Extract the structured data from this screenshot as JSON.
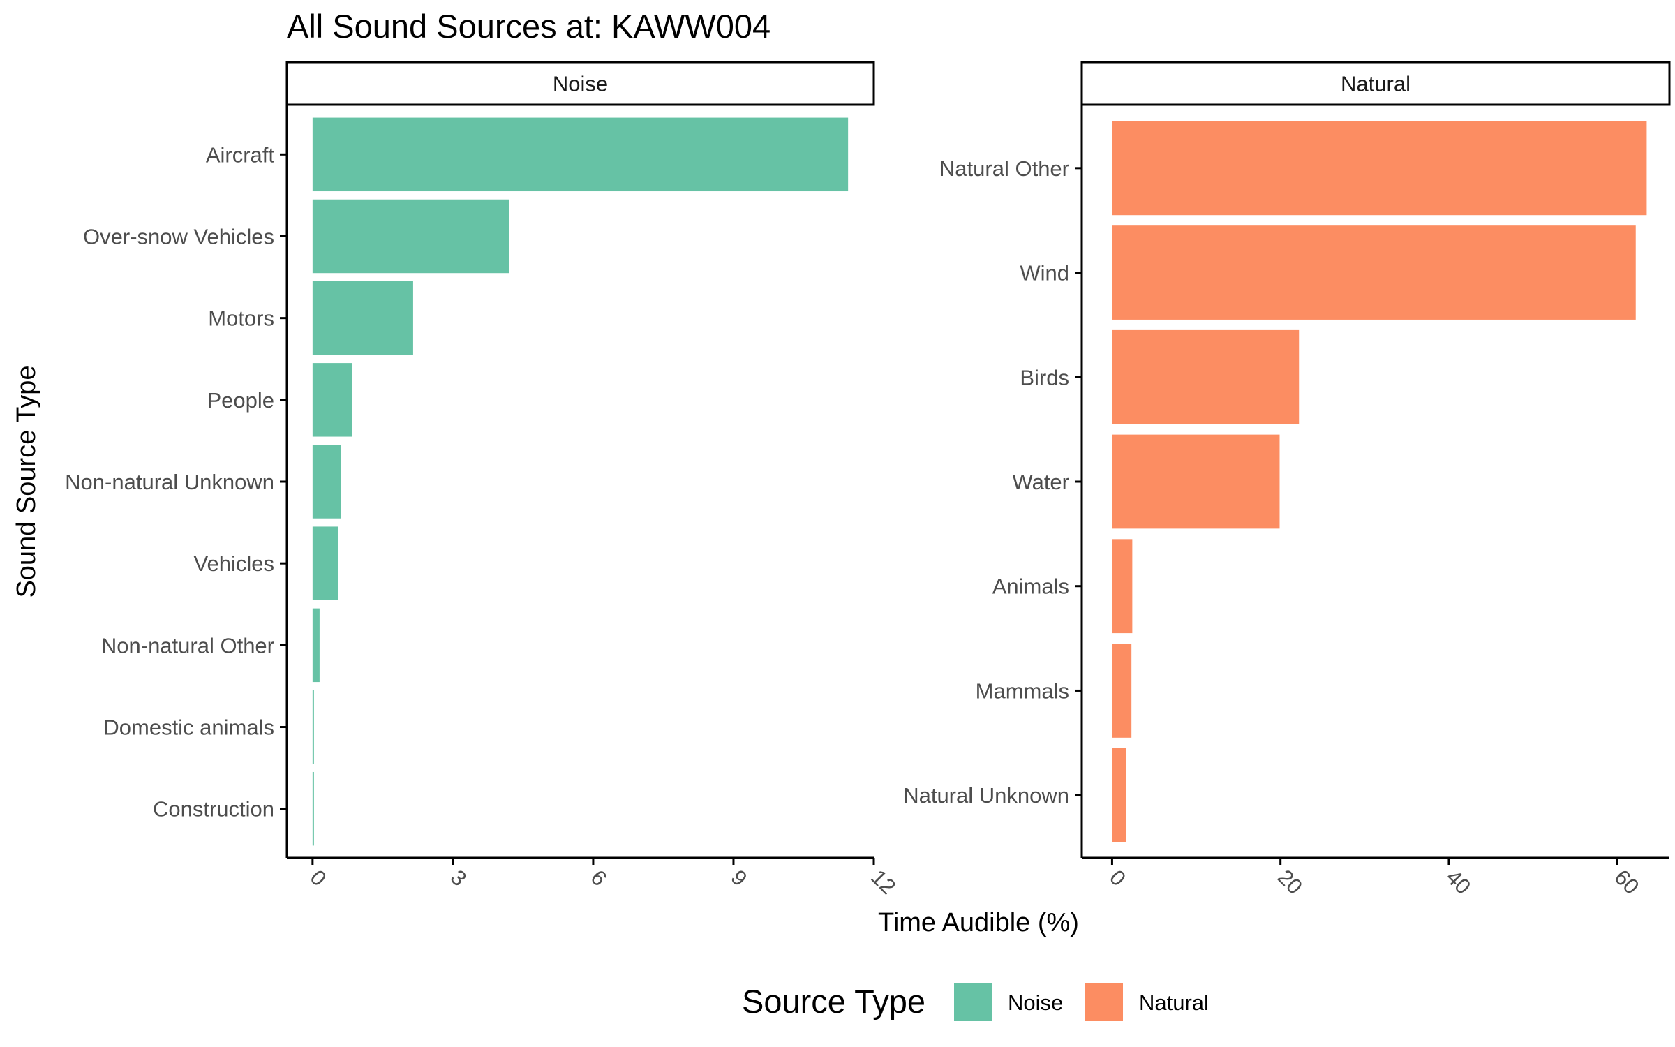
{
  "chart_data": {
    "type": "bar",
    "orientation": "horizontal",
    "title": "All Sound Sources at: KAWW004",
    "xlabel": "Time Audible (%)",
    "ylabel": "Sound Source Type",
    "grid": false,
    "legend": {
      "title": "Source Type",
      "position": "bottom",
      "entries": [
        {
          "name": "Noise",
          "color": "#66C2A5"
        },
        {
          "name": "Natural",
          "color": "#FC8D62"
        }
      ]
    },
    "facets": [
      {
        "label": "Noise",
        "color": "#66C2A5",
        "categories": [
          "Aircraft",
          "Over-snow Vehicles",
          "Motors",
          "People",
          "Non-natural Unknown",
          "Vehicles",
          "Non-natural Other",
          "Domestic animals",
          "Construction"
        ],
        "values": [
          11.45,
          4.2,
          2.15,
          0.85,
          0.6,
          0.55,
          0.15,
          0.03,
          0.03
        ],
        "xlim": [
          -0.55,
          12
        ],
        "xticks": [
          0,
          3,
          6,
          9,
          12
        ]
      },
      {
        "label": "Natural",
        "color": "#FC8D62",
        "categories": [
          "Natural Other",
          "Wind",
          "Birds",
          "Water",
          "Animals",
          "Mammals",
          "Natural Unknown"
        ],
        "values": [
          63.5,
          62.2,
          22.2,
          19.9,
          2.4,
          2.3,
          1.7
        ],
        "xlim": [
          -3.6,
          66.2
        ],
        "xticks": [
          0,
          20,
          40,
          60
        ]
      }
    ]
  }
}
